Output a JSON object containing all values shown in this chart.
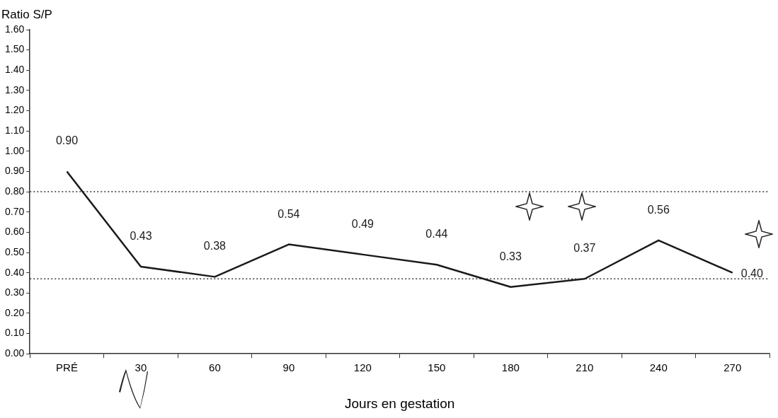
{
  "chart_data": {
    "type": "line",
    "xlabel": "Jours en gestation",
    "ylabel": "Ratio S/P",
    "categories": [
      "PRÉ",
      "30",
      "60",
      "90",
      "120",
      "150",
      "180",
      "210",
      "240",
      "270"
    ],
    "series": [
      {
        "color": "#1a1a1a",
        "values": [
          0.9,
          0.43,
          0.38,
          0.54,
          0.49,
          0.44,
          0.33,
          0.37,
          0.56,
          0.4
        ],
        "value_labels": [
          "0.90",
          "0.43",
          "0.38",
          "0.54",
          "0.49",
          "0.44",
          "0.33",
          "0.37",
          "0.56",
          "0.40"
        ]
      }
    ],
    "ylim": [
      0,
      1.6
    ],
    "yticks": [
      {
        "value": 0,
        "label": "0.00"
      },
      {
        "value": 0.1,
        "label": "0.10"
      },
      {
        "value": 0.2,
        "label": "0.20"
      },
      {
        "value": 0.3,
        "label": "0.30"
      },
      {
        "value": 0.4,
        "label": "0.40"
      },
      {
        "value": 0.5,
        "label": "0.50"
      },
      {
        "value": 0.6,
        "label": "0.60"
      },
      {
        "value": 0.7,
        "label": "0.70"
      },
      {
        "value": 0.8,
        "label": "0.80"
      },
      {
        "value": 0.9,
        "label": "0.90"
      },
      {
        "value": 1.0,
        "label": "1.00"
      },
      {
        "value": 1.1,
        "label": "1.10"
      },
      {
        "value": 1.2,
        "label": "1.20"
      },
      {
        "value": 1.3,
        "label": "1.30"
      },
      {
        "value": 1.4,
        "label": "1.40"
      },
      {
        "value": 1.5,
        "label": "1.50"
      },
      {
        "value": 1.6,
        "label": "1.60"
      }
    ],
    "ref_lines": [
      {
        "axis": "y",
        "value": 0.8,
        "line_style": "dotted",
        "color": "#333333"
      },
      {
        "axis": "y",
        "value": 0.37,
        "line_style": "dotted",
        "color": "#333333"
      }
    ],
    "grid": false,
    "legend": false,
    "marker": "none",
    "line_style": "solid"
  }
}
